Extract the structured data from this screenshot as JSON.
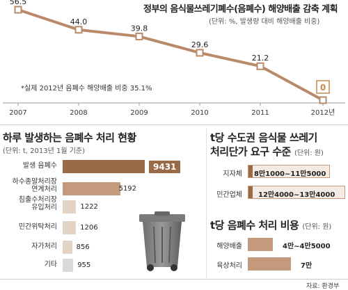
{
  "colors": {
    "line": "#b98a69",
    "bar": "#c39a7c",
    "bar_light": "#e3d3c4",
    "bar_gray": "#d9d9d9",
    "highlight": "#9a6a47",
    "pill_bg": "#f4ece4"
  },
  "top": {
    "title": "정부의 음식물쓰레기폐수(음폐수) 해양배출 감축 계획",
    "unit": "(단위: %, 발생량 대비 해양배출 비중)",
    "note": "*실제 2012년 음폐수 해양배출 비중 35.1%"
  },
  "bottom_left": {
    "title": "하루 발생하는 음폐수 처리 현황",
    "unit": "(단위: t, 2013년 1월 기준)"
  },
  "right1": {
    "title_line1": "t당 수도권 음식물 쓰레기",
    "title_line2": "처리단가 요구 수준",
    "unit": "(단위: 원)"
  },
  "right2": {
    "title": "t당 음폐수 처리 비용",
    "unit": "(단위: 원)"
  },
  "source": "자료: 환경부",
  "chart_data": [
    {
      "type": "line",
      "title": "정부의 음식물쓰레기폐수(음폐수) 해양배출 감축 계획",
      "x": [
        "2007",
        "2008",
        "2009",
        "2010",
        "2011",
        "2012년"
      ],
      "values": [
        56.5,
        44.0,
        39.8,
        29.6,
        21.2,
        0
      ],
      "value_labels": [
        "56.5",
        "44.0",
        "39.8",
        "29.6",
        "21.2",
        "0"
      ],
      "ylim": [
        0,
        56.5
      ]
    },
    {
      "type": "bar",
      "title": "하루 발생하는 음폐수 처리 현황",
      "categories": [
        "발생 음폐수",
        "하수종말처리장 연계처리",
        "침출수처리장 유입처리",
        "민간위탁처리",
        "자가처리",
        "기타"
      ],
      "category_lines": [
        [
          "발생 음폐수"
        ],
        [
          "하수종말처리장",
          "연계처리"
        ],
        [
          "침출수처리장",
          "유입처리"
        ],
        [
          "민간위탁처리"
        ],
        [
          "자가처리"
        ],
        [
          "기타"
        ]
      ],
      "values": [
        9431,
        5192,
        1222,
        1206,
        856,
        955
      ],
      "value_labels": [
        "9431",
        "5192",
        "1222",
        "1206",
        "856",
        "955"
      ]
    },
    {
      "type": "bar",
      "title": "t당 수도권 음식물 쓰레기 처리단가 요구 수준",
      "categories": [
        "지자체",
        "민간업체"
      ],
      "range_labels": [
        "8만1000~11만5000",
        "12만4000~13만4000"
      ],
      "ranges": [
        [
          81000,
          115000
        ],
        [
          124000,
          134000
        ]
      ]
    },
    {
      "type": "bar",
      "title": "t당 음폐수 처리 비용",
      "categories": [
        "해양배출",
        "육상처리"
      ],
      "range_labels": [
        "4만~4만5000",
        "7만"
      ],
      "ranges": [
        [
          40000,
          45000
        ],
        [
          70000,
          70000
        ]
      ]
    }
  ]
}
